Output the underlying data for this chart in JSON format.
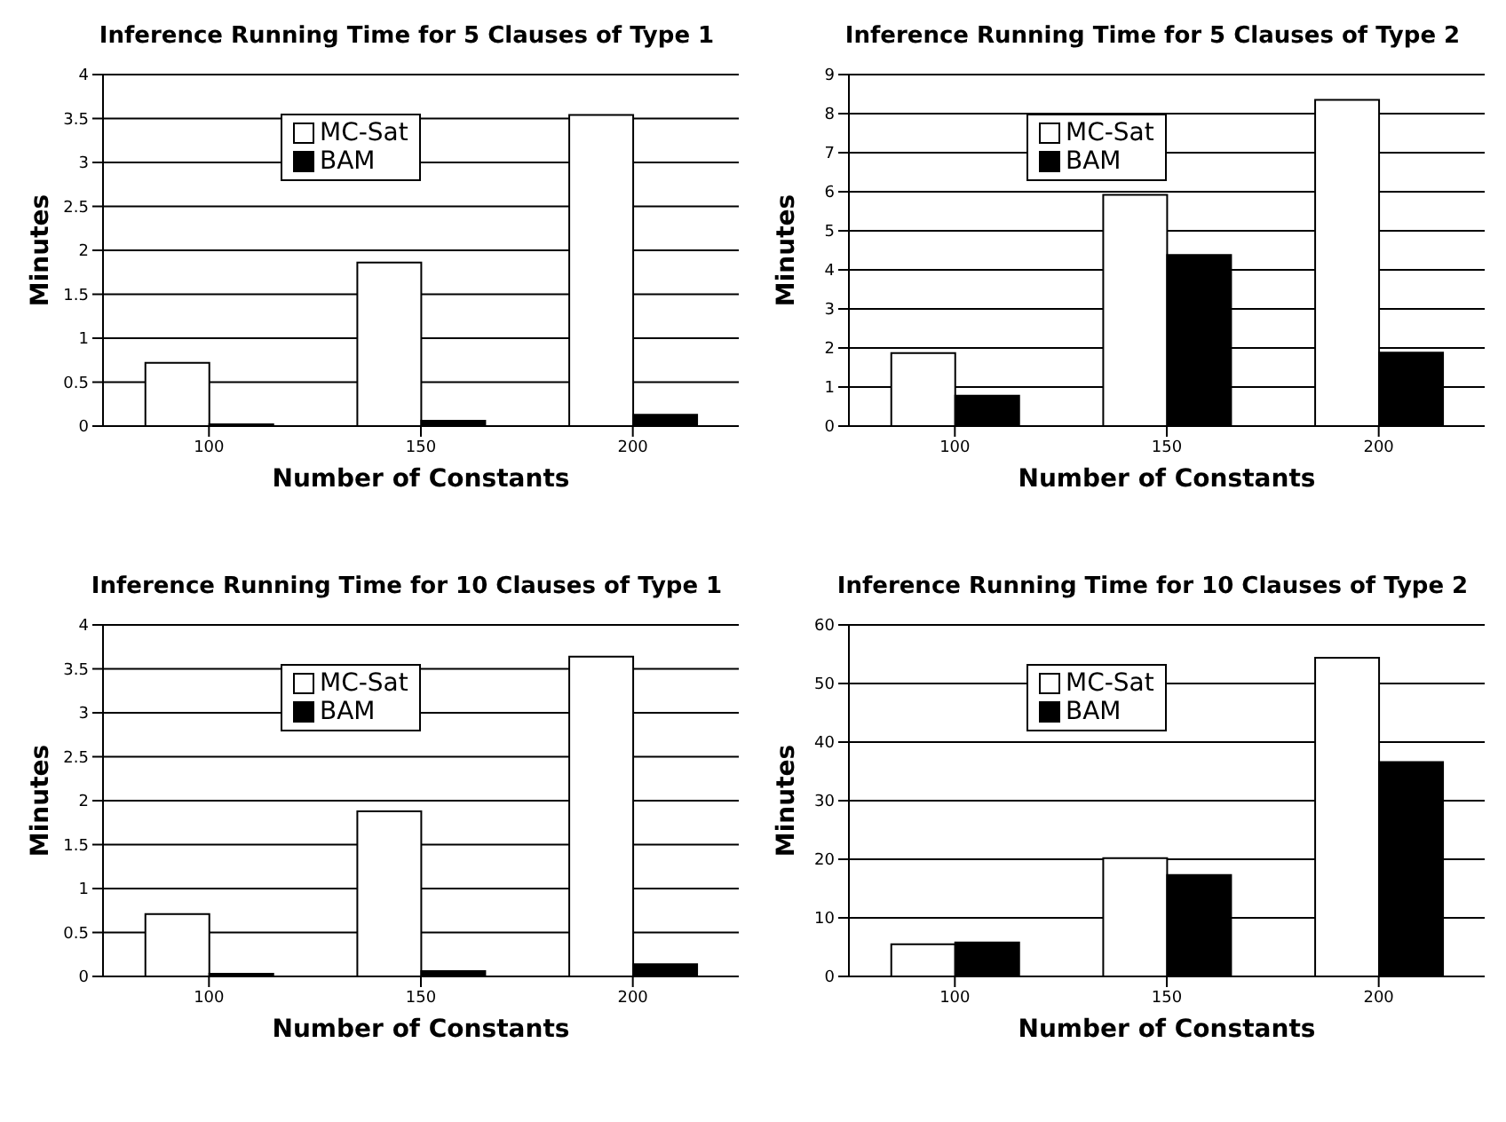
{
  "chart_data": [
    {
      "type": "bar",
      "title": "Inference Running Time for 5 Clauses of Type 1",
      "xlabel": "Number of Constants",
      "ylabel": "Minutes",
      "categories": [
        "100",
        "150",
        "200"
      ],
      "series": [
        {
          "name": "MC-Sat",
          "color": "#ffffff",
          "values": [
            0.72,
            1.86,
            3.54
          ]
        },
        {
          "name": "BAM",
          "color": "#000000",
          "values": [
            0.02,
            0.06,
            0.13
          ]
        }
      ],
      "ylim": [
        0,
        4
      ],
      "yticks": [
        0,
        0.5,
        1,
        1.5,
        2,
        2.5,
        3,
        3.5,
        4
      ],
      "grid": "y",
      "legend": "top"
    },
    {
      "type": "bar",
      "title": "Inference Running Time for 5 Clauses of Type 2",
      "xlabel": "Number of Constants",
      "ylabel": "Minutes",
      "categories": [
        "100",
        "150",
        "200"
      ],
      "series": [
        {
          "name": "MC-Sat",
          "color": "#ffffff",
          "values": [
            1.87,
            5.92,
            8.35
          ]
        },
        {
          "name": "BAM",
          "color": "#000000",
          "values": [
            0.78,
            4.38,
            1.88
          ]
        }
      ],
      "ylim": [
        0,
        9
      ],
      "yticks": [
        0,
        1,
        2,
        3,
        4,
        5,
        6,
        7,
        8,
        9
      ],
      "grid": "y",
      "legend": "top"
    },
    {
      "type": "bar",
      "title": "Inference Running Time for 10 Clauses of Type 1",
      "xlabel": "Number of Constants",
      "ylabel": "Minutes",
      "categories": [
        "100",
        "150",
        "200"
      ],
      "series": [
        {
          "name": "MC-Sat",
          "color": "#ffffff",
          "values": [
            0.71,
            1.88,
            3.64
          ]
        },
        {
          "name": "BAM",
          "color": "#000000",
          "values": [
            0.03,
            0.06,
            0.14
          ]
        }
      ],
      "ylim": [
        0,
        4
      ],
      "yticks": [
        0,
        0.5,
        1,
        1.5,
        2,
        2.5,
        3,
        3.5,
        4
      ],
      "grid": "y",
      "legend": "top"
    },
    {
      "type": "bar",
      "title": "Inference Running Time for 10 Clauses of Type 2",
      "xlabel": "Number of Constants",
      "ylabel": "Minutes",
      "categories": [
        "100",
        "150",
        "200"
      ],
      "series": [
        {
          "name": "MC-Sat",
          "color": "#ffffff",
          "values": [
            5.5,
            20.2,
            54.4
          ]
        },
        {
          "name": "BAM",
          "color": "#000000",
          "values": [
            5.8,
            17.3,
            36.6
          ]
        }
      ],
      "ylim": [
        0,
        60
      ],
      "yticks": [
        0,
        10,
        20,
        30,
        40,
        50,
        60
      ],
      "grid": "y",
      "legend": "top"
    }
  ]
}
